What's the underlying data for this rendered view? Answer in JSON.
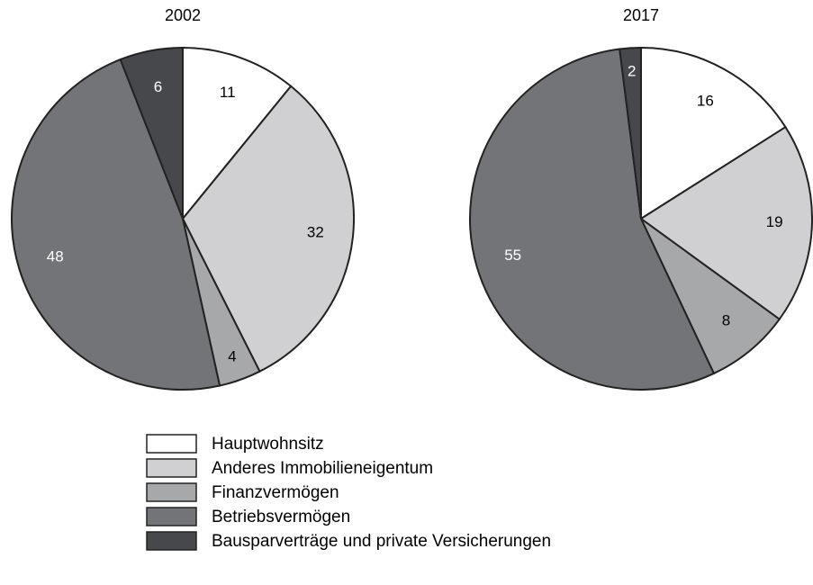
{
  "chart_data": [
    {
      "type": "pie",
      "title": "2002",
      "values": [
        11,
        32,
        4,
        48,
        6
      ]
    },
    {
      "type": "pie",
      "title": "2017",
      "values": [
        16,
        19,
        8,
        55,
        2
      ]
    }
  ],
  "legend": {
    "labels": [
      "Hauptwohnsitz",
      "Anderes Immobilieneigentum",
      "Finanzvermögen",
      "Betriebsvermögen",
      "Bausparverträge und private Versicherungen"
    ],
    "colors": [
      "#ffffff",
      "#d0d0d2",
      "#a7a8aa",
      "#737478",
      "#47484b"
    ]
  }
}
